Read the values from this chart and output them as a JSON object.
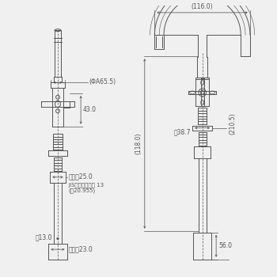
{
  "bg_color": "#f0f0f0",
  "line_color": "#555555",
  "dim_color": "#555555",
  "text_color": "#444444",
  "label_116": "(116.0)",
  "label_210": "(210.5)",
  "label_118": "(118.0)",
  "label_38": "΃38.7",
  "label_56": "56.0",
  "label_A65": "(ΦA65.5)",
  "label_43": "43.0",
  "label_hex25": "六角形25.0",
  "label_jis": "JIS給水栃付ねじ 13",
  "label_jis2": "(΃20.955)",
  "label_13": "΃13.0",
  "label_hex23": "六角形23.0",
  "fontsize_small": 5.5,
  "fontsize_label": 5.0
}
